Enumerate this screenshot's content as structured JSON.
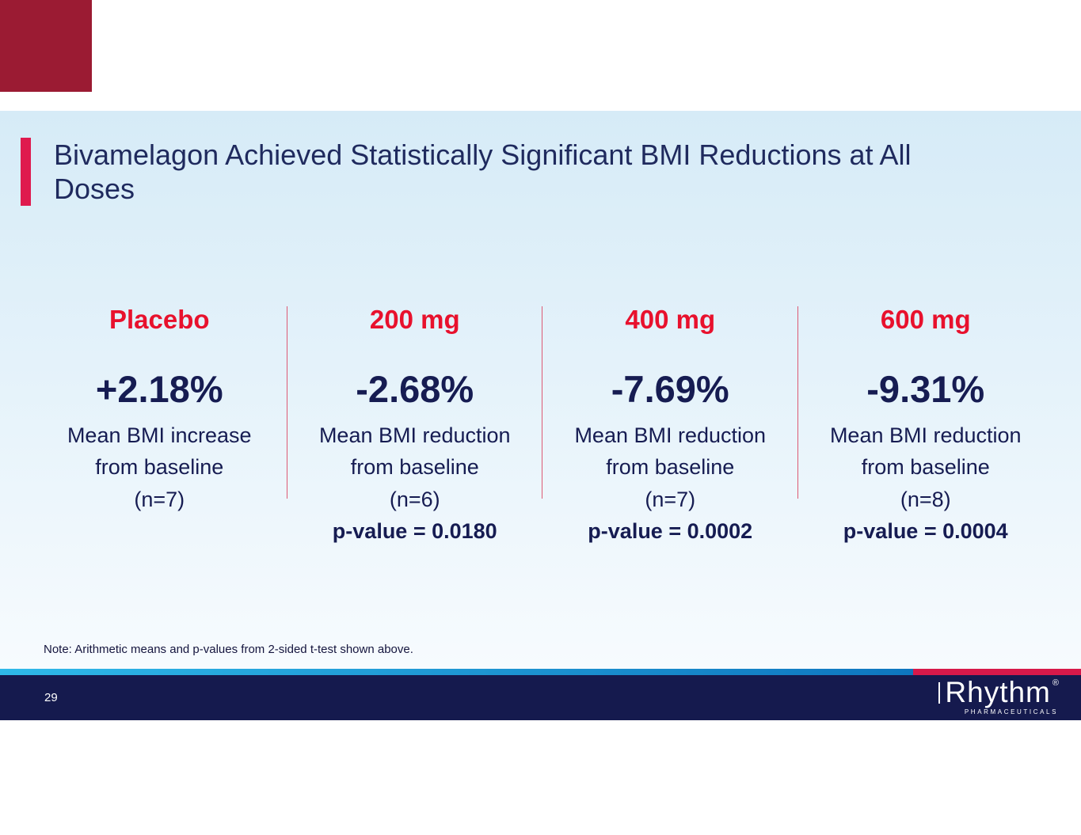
{
  "slide": {
    "title_lines": [
      "Bivamelagon Achieved Statistically Significant BMI Reductions at All",
      "Doses"
    ],
    "columns": [
      {
        "dose": "Placebo",
        "value": "+2.18%",
        "desc_line1": "Mean BMI increase",
        "desc_line2": "from baseline",
        "n": "(n=7)",
        "pvalue": ""
      },
      {
        "dose": "200 mg",
        "value": "-2.68%",
        "desc_line1": "Mean BMI reduction",
        "desc_line2": "from baseline",
        "n": "(n=6)",
        "pvalue": "p-value = 0.0180"
      },
      {
        "dose": "400 mg",
        "value": "-7.69%",
        "desc_line1": "Mean BMI reduction",
        "desc_line2": "from baseline",
        "n": "(n=7)",
        "pvalue": "p-value = 0.0002"
      },
      {
        "dose": "600 mg",
        "value": "-9.31%",
        "desc_line1": "Mean BMI reduction",
        "desc_line2": "from baseline",
        "n": "(n=8)",
        "pvalue": "p-value = 0.0004"
      }
    ],
    "note": "Note: Arithmetic means and p-values from 2-sided t-test shown above.",
    "footer": {
      "page_number": "29",
      "logo_text": "Rhythm",
      "logo_registered": "®",
      "logo_subtext": "PHARMACEUTICALS"
    },
    "colors": {
      "header_red": "#E8112D",
      "navy_text": "#161C52",
      "title_accent": "#DF1A4E",
      "corner_square": "#9B1B33",
      "footer_navy": "#151A4E",
      "footer_cyan": "#2FB9E9",
      "footer_red": "#D7194A"
    }
  }
}
